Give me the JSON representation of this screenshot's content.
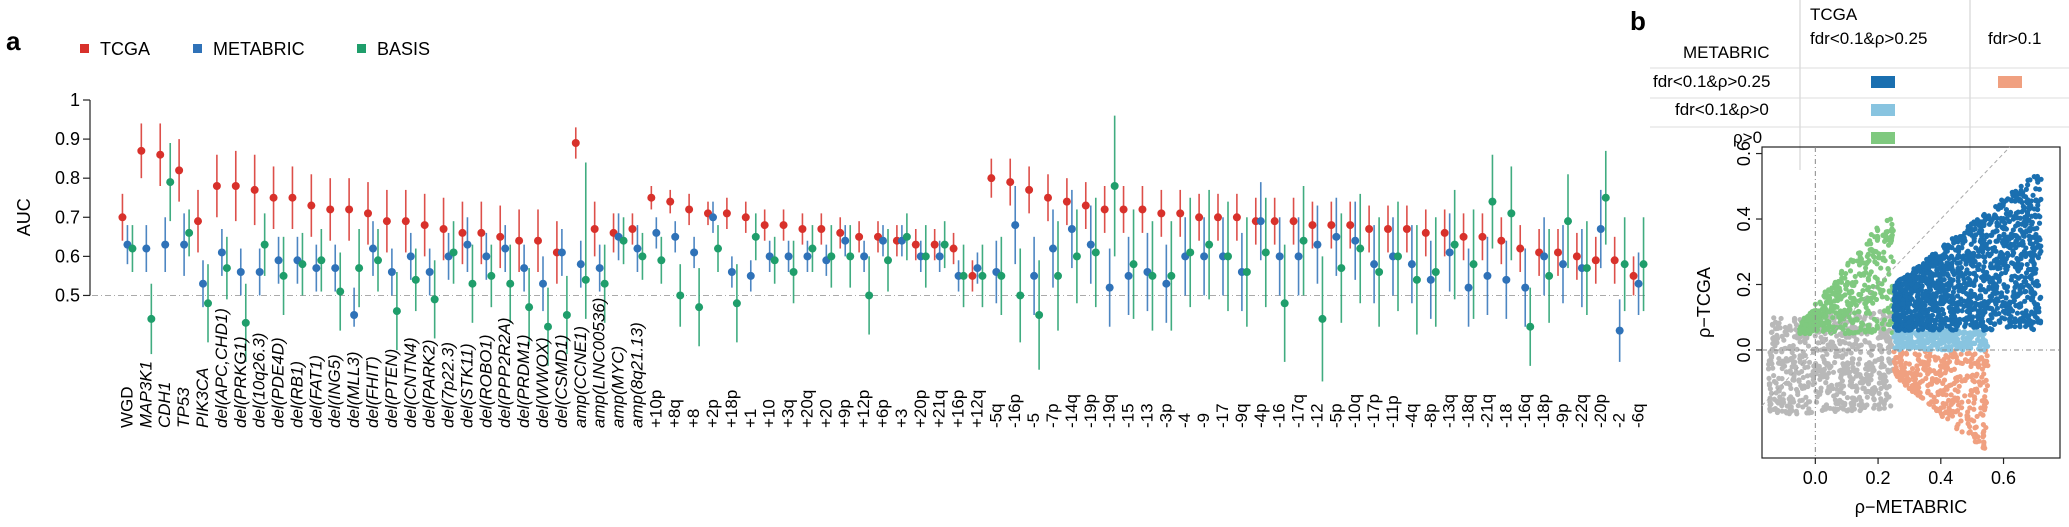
{
  "panel_a": {
    "label": "a",
    "legend": [
      {
        "name": "TCGA",
        "color": "#d8312b"
      },
      {
        "name": "METABRIC",
        "color": "#2f72b8"
      },
      {
        "name": "BASIS",
        "color": "#1f9e6b"
      }
    ]
  },
  "panel_b": {
    "label": "b",
    "table": {
      "col_header_title": "TCGA",
      "col_headers": [
        "fdr<0.1&ρ>0.25",
        "fdr>0.1"
      ],
      "row_header_title": "METABRIC",
      "rows": [
        {
          "label": "fdr<0.1&ρ>0.25",
          "cells": [
            "#1a6fb0",
            "#f0a080"
          ]
        },
        {
          "label": "fdr<0.1&ρ>0",
          "cells": [
            "#88c4e0",
            ""
          ]
        },
        {
          "label": "ρ>0",
          "cells": [
            "#7fc97f",
            ""
          ]
        }
      ]
    }
  },
  "chart_data": [
    {
      "type": "scatter",
      "title": "",
      "xlabel": "",
      "ylabel": "AUC",
      "ylim": [
        0.45,
        1.0
      ],
      "yticks": [
        0.5,
        0.6,
        0.7,
        0.8,
        0.9,
        1
      ],
      "reference_line": 0.5,
      "grid": false,
      "legend_position": "top-left",
      "categories": [
        "WGD",
        "MAP3K1",
        "CDH1",
        "TP53",
        "PIK3CA",
        "del(APC,CHD1)",
        "del(PRKG1)",
        "del(10q26.3)",
        "del(PDE4D)",
        "del(RB1)",
        "del(FAT1)",
        "del(ING5)",
        "del(MLL3)",
        "del(FHIT)",
        "del(PTEN)",
        "del(CNTN4)",
        "del(PARK2)",
        "del(7p22.3)",
        "del(STK11)",
        "del(ROBO1)",
        "del(PPP2R2A)",
        "del(PRDM1)",
        "del(WWOX)",
        "del(CSMD1)",
        "amp(CCNE1)",
        "amp(LINC00536)",
        "amp(MYC)",
        "amp(8q21.13)",
        "+10p",
        "+8q",
        "+8",
        "+2p",
        "+18p",
        "+1",
        "+10",
        "+3q",
        "+20q",
        "+20",
        "+9p",
        "+12p",
        "+6p",
        "+3",
        "+20p",
        "+21q",
        "+16p",
        "+12q",
        "-5q",
        "-16p",
        "-5",
        "-7p",
        "-14q",
        "-19p",
        "-19q",
        "-15",
        "-13",
        "-3p",
        "-4",
        "-9",
        "-17",
        "-9q",
        "-4p",
        "-16",
        "-17q",
        "-12",
        "-5p",
        "-10q",
        "-17p",
        "-11p",
        "-4q",
        "-8p",
        "-13q",
        "-18q",
        "-21q",
        "-18",
        "-16q",
        "-18p",
        "-9p",
        "-22q",
        "-20p",
        "-2",
        "-6q"
      ],
      "series": [
        {
          "name": "TCGA",
          "color": "#d8312b",
          "values": [
            0.7,
            0.87,
            0.86,
            0.82,
            0.69,
            0.78,
            0.78,
            0.77,
            0.75,
            0.75,
            0.73,
            0.72,
            0.72,
            0.71,
            0.69,
            0.69,
            0.68,
            0.67,
            0.66,
            0.66,
            0.65,
            0.64,
            0.64,
            0.61,
            0.89,
            0.67,
            0.66,
            0.67,
            0.75,
            0.74,
            0.72,
            0.71,
            0.71,
            0.7,
            0.68,
            0.68,
            0.67,
            0.67,
            0.66,
            0.65,
            0.65,
            0.64,
            0.63,
            0.63,
            0.62,
            0.55,
            0.8,
            0.79,
            0.77,
            0.75,
            0.74,
            0.73,
            0.72,
            0.72,
            0.72,
            0.71,
            0.71,
            0.7,
            0.7,
            0.7,
            0.69,
            0.69,
            0.69,
            0.68,
            0.68,
            0.68,
            0.67,
            0.67,
            0.67,
            0.66,
            0.66,
            0.65,
            0.65,
            0.64,
            0.62,
            0.61,
            0.61,
            0.6,
            0.59,
            0.59,
            0.55
          ],
          "ci_low": [
            0.64,
            0.8,
            0.78,
            0.74,
            0.61,
            0.7,
            0.69,
            0.68,
            0.67,
            0.67,
            0.65,
            0.64,
            0.64,
            0.63,
            0.61,
            0.61,
            0.6,
            0.59,
            0.58,
            0.58,
            0.57,
            0.56,
            0.56,
            0.53,
            0.85,
            0.6,
            0.61,
            0.63,
            0.72,
            0.71,
            0.68,
            0.68,
            0.67,
            0.66,
            0.64,
            0.64,
            0.63,
            0.63,
            0.62,
            0.61,
            0.61,
            0.6,
            0.59,
            0.59,
            0.58,
            0.51,
            0.75,
            0.73,
            0.71,
            0.69,
            0.68,
            0.67,
            0.66,
            0.66,
            0.66,
            0.65,
            0.65,
            0.64,
            0.64,
            0.64,
            0.63,
            0.63,
            0.63,
            0.62,
            0.62,
            0.62,
            0.61,
            0.61,
            0.61,
            0.6,
            0.6,
            0.59,
            0.59,
            0.58,
            0.56,
            0.55,
            0.55,
            0.54,
            0.53,
            0.53,
            0.5
          ],
          "ci_high": [
            0.76,
            0.94,
            0.94,
            0.9,
            0.77,
            0.86,
            0.87,
            0.86,
            0.83,
            0.83,
            0.81,
            0.8,
            0.8,
            0.79,
            0.77,
            0.77,
            0.76,
            0.75,
            0.74,
            0.74,
            0.73,
            0.72,
            0.72,
            0.69,
            0.93,
            0.74,
            0.71,
            0.71,
            0.78,
            0.77,
            0.76,
            0.74,
            0.75,
            0.74,
            0.72,
            0.72,
            0.71,
            0.71,
            0.7,
            0.69,
            0.69,
            0.68,
            0.67,
            0.67,
            0.66,
            0.59,
            0.85,
            0.85,
            0.83,
            0.81,
            0.8,
            0.79,
            0.78,
            0.78,
            0.78,
            0.77,
            0.77,
            0.76,
            0.76,
            0.76,
            0.75,
            0.75,
            0.75,
            0.74,
            0.74,
            0.74,
            0.73,
            0.73,
            0.73,
            0.72,
            0.72,
            0.71,
            0.71,
            0.7,
            0.68,
            0.67,
            0.67,
            0.66,
            0.65,
            0.65,
            0.6
          ]
        },
        {
          "name": "METABRIC",
          "color": "#2f72b8",
          "values": [
            0.63,
            0.62,
            0.63,
            0.63,
            0.53,
            0.61,
            0.56,
            0.56,
            0.59,
            0.59,
            0.57,
            0.57,
            0.45,
            0.62,
            0.56,
            0.6,
            0.56,
            0.6,
            0.63,
            0.6,
            0.62,
            0.57,
            0.53,
            0.61,
            0.58,
            0.57,
            0.65,
            0.62,
            0.66,
            0.65,
            0.61,
            0.7,
            0.56,
            0.55,
            0.6,
            0.6,
            0.6,
            0.59,
            0.64,
            0.6,
            0.64,
            0.64,
            0.6,
            0.6,
            0.55,
            0.57,
            0.56,
            0.68,
            0.55,
            0.62,
            0.67,
            0.63,
            0.52,
            0.55,
            0.56,
            0.53,
            0.6,
            0.6,
            0.6,
            0.56,
            0.69,
            0.6,
            0.6,
            0.63,
            0.65,
            0.64,
            0.58,
            0.6,
            0.58,
            0.54,
            0.61,
            0.52,
            0.55,
            0.54,
            0.52,
            0.6,
            0.58,
            0.57,
            0.67,
            0.41,
            0.53
          ],
          "ci_low": [
            0.58,
            0.56,
            0.56,
            0.55,
            0.47,
            0.55,
            0.5,
            0.5,
            0.53,
            0.53,
            0.51,
            0.51,
            0.42,
            0.55,
            0.5,
            0.54,
            0.5,
            0.54,
            0.56,
            0.54,
            0.56,
            0.51,
            0.46,
            0.55,
            0.52,
            0.51,
            0.59,
            0.56,
            0.62,
            0.61,
            0.57,
            0.66,
            0.52,
            0.51,
            0.56,
            0.56,
            0.56,
            0.55,
            0.6,
            0.56,
            0.6,
            0.6,
            0.56,
            0.56,
            0.51,
            0.53,
            0.48,
            0.58,
            0.45,
            0.52,
            0.57,
            0.53,
            0.42,
            0.45,
            0.46,
            0.43,
            0.5,
            0.5,
            0.5,
            0.46,
            0.59,
            0.5,
            0.5,
            0.53,
            0.55,
            0.54,
            0.48,
            0.5,
            0.48,
            0.44,
            0.51,
            0.42,
            0.45,
            0.44,
            0.42,
            0.5,
            0.48,
            0.47,
            0.57,
            0.33,
            0.45
          ],
          "ci_high": [
            0.68,
            0.68,
            0.7,
            0.71,
            0.59,
            0.67,
            0.62,
            0.62,
            0.65,
            0.65,
            0.63,
            0.63,
            0.52,
            0.69,
            0.62,
            0.66,
            0.62,
            0.66,
            0.7,
            0.66,
            0.68,
            0.63,
            0.6,
            0.67,
            0.64,
            0.63,
            0.71,
            0.68,
            0.7,
            0.69,
            0.65,
            0.74,
            0.6,
            0.59,
            0.64,
            0.64,
            0.64,
            0.63,
            0.68,
            0.64,
            0.68,
            0.68,
            0.64,
            0.64,
            0.59,
            0.61,
            0.64,
            0.78,
            0.65,
            0.72,
            0.77,
            0.73,
            0.62,
            0.65,
            0.66,
            0.63,
            0.7,
            0.7,
            0.7,
            0.66,
            0.79,
            0.7,
            0.7,
            0.73,
            0.75,
            0.74,
            0.68,
            0.7,
            0.68,
            0.64,
            0.71,
            0.62,
            0.65,
            0.64,
            0.62,
            0.7,
            0.68,
            0.67,
            0.77,
            0.49,
            0.61
          ]
        },
        {
          "name": "BASIS",
          "color": "#1f9e6b",
          "values": [
            0.62,
            0.44,
            0.79,
            0.66,
            0.48,
            0.57,
            0.43,
            0.63,
            0.55,
            0.58,
            0.59,
            0.51,
            0.57,
            0.59,
            0.46,
            0.54,
            0.49,
            0.61,
            0.53,
            0.55,
            0.53,
            0.47,
            0.42,
            0.45,
            0.54,
            0.53,
            0.64,
            0.6,
            0.59,
            0.5,
            0.47,
            0.62,
            0.48,
            0.65,
            0.59,
            0.56,
            0.62,
            0.6,
            0.6,
            0.5,
            0.59,
            0.65,
            0.6,
            0.63,
            0.55,
            0.55,
            0.55,
            0.5,
            0.45,
            0.55,
            0.6,
            0.61,
            0.78,
            0.58,
            0.55,
            0.55,
            0.61,
            0.63,
            0.6,
            0.56,
            0.61,
            0.48,
            0.64,
            0.44,
            0.57,
            0.62,
            0.56,
            0.6,
            0.54,
            0.56,
            0.63,
            0.58,
            0.74,
            0.71,
            0.42,
            0.55,
            0.69,
            0.57,
            0.75,
            0.58,
            0.58
          ],
          "ci_low": [
            0.56,
            0.35,
            0.69,
            0.6,
            0.38,
            0.49,
            0.33,
            0.55,
            0.45,
            0.5,
            0.51,
            0.41,
            0.47,
            0.51,
            0.36,
            0.46,
            0.39,
            0.53,
            0.43,
            0.47,
            0.43,
            0.37,
            0.32,
            0.35,
            0.44,
            0.43,
            0.58,
            0.54,
            0.53,
            0.42,
            0.37,
            0.56,
            0.38,
            0.59,
            0.53,
            0.48,
            0.56,
            0.52,
            0.52,
            0.4,
            0.51,
            0.59,
            0.52,
            0.57,
            0.47,
            0.47,
            0.45,
            0.38,
            0.31,
            0.41,
            0.48,
            0.47,
            0.6,
            0.44,
            0.41,
            0.41,
            0.47,
            0.49,
            0.46,
            0.42,
            0.47,
            0.33,
            0.5,
            0.28,
            0.43,
            0.48,
            0.42,
            0.46,
            0.4,
            0.42,
            0.49,
            0.44,
            0.62,
            0.59,
            0.32,
            0.43,
            0.57,
            0.45,
            0.63,
            0.46,
            0.46
          ],
          "ci_high": [
            0.68,
            0.53,
            0.89,
            0.72,
            0.58,
            0.65,
            0.53,
            0.71,
            0.65,
            0.66,
            0.67,
            0.61,
            0.67,
            0.67,
            0.56,
            0.62,
            0.59,
            0.69,
            0.63,
            0.63,
            0.63,
            0.57,
            0.52,
            0.55,
            0.84,
            0.63,
            0.7,
            0.66,
            0.65,
            0.58,
            0.57,
            0.68,
            0.58,
            0.71,
            0.65,
            0.64,
            0.68,
            0.68,
            0.68,
            0.6,
            0.67,
            0.71,
            0.68,
            0.69,
            0.63,
            0.63,
            0.65,
            0.62,
            0.59,
            0.69,
            0.72,
            0.75,
            0.96,
            0.72,
            0.69,
            0.69,
            0.75,
            0.77,
            0.74,
            0.7,
            0.75,
            0.63,
            0.78,
            0.6,
            0.71,
            0.76,
            0.7,
            0.74,
            0.68,
            0.7,
            0.77,
            0.72,
            0.86,
            0.83,
            0.52,
            0.67,
            0.81,
            0.69,
            0.87,
            0.7,
            0.7
          ]
        }
      ]
    },
    {
      "type": "scatter",
      "title": "",
      "xlabel": "ρ−METABRIC",
      "ylabel": "ρ−TCGA",
      "xlim": [
        -0.17,
        0.78
      ],
      "ylim": [
        -0.33,
        0.62
      ],
      "xticks": [
        0.0,
        0.2,
        0.4,
        0.6
      ],
      "yticks": [
        0.0,
        0.2,
        0.4,
        0.6
      ],
      "reference_lines": {
        "x": 0,
        "y": 0,
        "diagonal": true
      },
      "grid": false,
      "groups": [
        {
          "category": "fdr<0.1&ρ>0.25 / fdr<0.1&ρ>0.25",
          "color": "#1a6fb0",
          "x_range": [
            0.25,
            0.72
          ],
          "y_range": [
            0.02,
            0.53
          ]
        },
        {
          "category": "fdr<0.1&ρ>0 / fdr<0.1&ρ>0.25",
          "color": "#88c4e0",
          "x_range": [
            0.25,
            0.55
          ],
          "y_range": [
            0.0,
            0.06
          ]
        },
        {
          "category": "ρ>0 / fdr<0.1&ρ>0.25",
          "color": "#7fc97f",
          "x_range": [
            -0.05,
            0.25
          ],
          "y_range": [
            0.05,
            0.45
          ]
        },
        {
          "category": "fdr<0.1&ρ>0.25 / fdr>0.1",
          "color": "#f0a080",
          "x_range": [
            0.25,
            0.55
          ],
          "y_range": [
            -0.3,
            0.0
          ]
        },
        {
          "category": "other",
          "color": "#b8b8b8",
          "x_range": [
            -0.15,
            0.25
          ],
          "y_range": [
            -0.2,
            0.1
          ]
        }
      ]
    }
  ]
}
